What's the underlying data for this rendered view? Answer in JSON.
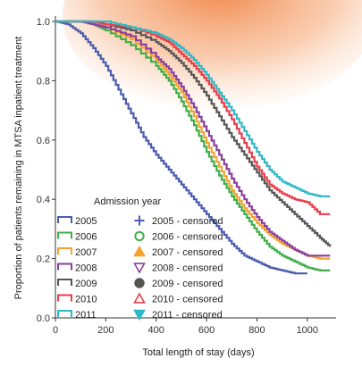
{
  "chart_data": {
    "type": "line",
    "subtype": "kaplan-meier step curves",
    "xlabel": "Total length of stay (days)",
    "ylabel": "Proportion of patients remaining in MTSA inpatient treatment",
    "xlim": [
      0,
      1100
    ],
    "ylim": [
      0,
      1.0
    ],
    "xticks": [
      0,
      200,
      400,
      600,
      800,
      1000
    ],
    "yticks": [
      0.0,
      0.2,
      0.4,
      0.6,
      0.8,
      1.0
    ],
    "xtick_labels": [
      "0",
      "200",
      "400",
      "600",
      "800",
      "1000"
    ],
    "ytick_labels": [
      "0.0",
      "0.2",
      "0.4",
      "0.6",
      "0.8",
      "1.0"
    ],
    "grid": false,
    "legend_title": "Admission year",
    "legend_placement": "bottom-left",
    "series": [
      {
        "name": "2005",
        "censored_label": "2005 - censored",
        "marker": "plus",
        "color": "#4a5cae",
        "x": [
          0,
          50,
          100,
          150,
          200,
          250,
          300,
          350,
          400,
          450,
          500,
          550,
          600,
          650,
          700,
          750,
          800,
          850,
          900,
          950,
          1000
        ],
        "y": [
          1.0,
          0.99,
          0.96,
          0.91,
          0.85,
          0.77,
          0.69,
          0.61,
          0.55,
          0.5,
          0.45,
          0.4,
          0.35,
          0.3,
          0.25,
          0.21,
          0.19,
          0.17,
          0.16,
          0.15,
          0.15
        ]
      },
      {
        "name": "2006",
        "censored_label": "2006 - censored",
        "marker": "circle-open",
        "color": "#3fae49",
        "x": [
          0,
          100,
          150,
          200,
          300,
          400,
          450,
          500,
          550,
          600,
          650,
          700,
          750,
          800,
          850,
          900,
          950,
          1000,
          1050,
          1090
        ],
        "y": [
          1.0,
          1.0,
          0.99,
          0.97,
          0.92,
          0.85,
          0.8,
          0.73,
          0.65,
          0.56,
          0.48,
          0.41,
          0.35,
          0.29,
          0.24,
          0.21,
          0.19,
          0.17,
          0.16,
          0.16
        ]
      },
      {
        "name": "2007",
        "censored_label": "2007 - censored",
        "marker": "triangle-up-filled",
        "color": "#f4a32e",
        "x": [
          0,
          100,
          150,
          200,
          300,
          400,
          450,
          500,
          550,
          600,
          650,
          700,
          750,
          800,
          850,
          900,
          950,
          1000,
          1050,
          1090
        ],
        "y": [
          1.0,
          1.0,
          0.99,
          0.98,
          0.94,
          0.87,
          0.82,
          0.76,
          0.68,
          0.59,
          0.51,
          0.43,
          0.37,
          0.32,
          0.28,
          0.25,
          0.23,
          0.21,
          0.2,
          0.2
        ]
      },
      {
        "name": "2008",
        "censored_label": "2008 - censored",
        "marker": "triangle-down-open",
        "color": "#8a3f9e",
        "x": [
          0,
          100,
          150,
          200,
          300,
          400,
          450,
          500,
          550,
          600,
          650,
          700,
          750,
          800,
          850,
          900,
          950,
          1000,
          1050,
          1090
        ],
        "y": [
          1.0,
          1.0,
          0.99,
          0.98,
          0.95,
          0.88,
          0.84,
          0.78,
          0.71,
          0.63,
          0.55,
          0.47,
          0.4,
          0.34,
          0.29,
          0.26,
          0.23,
          0.21,
          0.21,
          0.21
        ]
      },
      {
        "name": "2009",
        "censored_label": "2009 - censored",
        "marker": "circle-filled",
        "color": "#555555",
        "x": [
          0,
          100,
          150,
          200,
          300,
          400,
          450,
          500,
          550,
          600,
          650,
          700,
          750,
          800,
          850,
          900,
          950,
          1000,
          1050,
          1090
        ],
        "y": [
          1.0,
          1.0,
          1.0,
          0.99,
          0.97,
          0.93,
          0.9,
          0.86,
          0.81,
          0.75,
          0.68,
          0.61,
          0.55,
          0.49,
          0.43,
          0.39,
          0.35,
          0.31,
          0.27,
          0.24
        ]
      },
      {
        "name": "2010",
        "censored_label": "2010 - censored",
        "marker": "triangle-up-open",
        "color": "#e83e4a",
        "x": [
          0,
          100,
          150,
          200,
          300,
          400,
          450,
          500,
          550,
          600,
          650,
          700,
          750,
          800,
          850,
          900,
          950,
          1000,
          1050,
          1090
        ],
        "y": [
          1.0,
          1.0,
          1.0,
          0.99,
          0.98,
          0.95,
          0.93,
          0.89,
          0.85,
          0.8,
          0.74,
          0.67,
          0.59,
          0.51,
          0.45,
          0.42,
          0.4,
          0.39,
          0.35,
          0.35
        ]
      },
      {
        "name": "2011",
        "censored_label": "2011 - censored",
        "marker": "triangle-down-filled",
        "color": "#2fb8c8",
        "x": [
          0,
          100,
          150,
          200,
          300,
          400,
          450,
          500,
          550,
          600,
          650,
          700,
          750,
          800,
          850,
          900,
          950,
          1000,
          1050,
          1090
        ],
        "y": [
          1.0,
          1.0,
          1.0,
          1.0,
          0.98,
          0.96,
          0.94,
          0.91,
          0.87,
          0.82,
          0.76,
          0.7,
          0.63,
          0.56,
          0.5,
          0.46,
          0.44,
          0.42,
          0.41,
          0.41
        ]
      }
    ]
  }
}
